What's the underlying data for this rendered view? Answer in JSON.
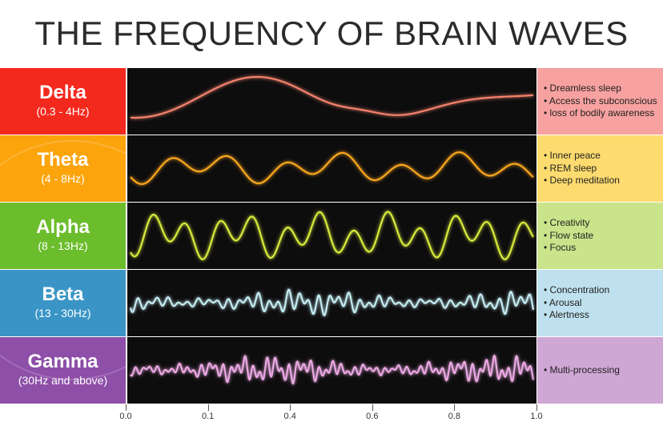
{
  "title": "THE FREQUENCY OF BRAIN WAVES",
  "waves": [
    {
      "name": "Delta",
      "range": "(0.3 - 4Hz)",
      "color": "#f4291e",
      "right_color": "#f7a1a0",
      "wave_color": "#f2826c",
      "effects": [
        "Dreamless sleep",
        "Access the subconscious",
        "loss of bodily awareness"
      ]
    },
    {
      "name": "Theta",
      "range": "(4 - 8Hz)",
      "color": "#fca40c",
      "right_color": "#fedb6e",
      "wave_color": "#f8a61e",
      "effects": [
        "Inner peace",
        "REM sleep",
        "Deep meditation"
      ]
    },
    {
      "name": "Alpha",
      "range": "(8 - 13Hz)",
      "color": "#6bbd2c",
      "right_color": "#c9e48a",
      "wave_color": "#d6ea3c",
      "effects": [
        "Creativity",
        "Flow state",
        "Focus"
      ]
    },
    {
      "name": "Beta",
      "range": "(13 - 30Hz)",
      "color": "#3a95c6",
      "right_color": "#bfe0ee",
      "wave_color": "#c4ecf2",
      "effects": [
        "Concentration",
        "Arousal",
        "Alertness"
      ]
    },
    {
      "name": "Gamma",
      "range": "(30Hz and above)",
      "color": "#8e4fa8",
      "right_color": "#cfa7d4",
      "wave_color": "#eaa8e2",
      "effects": [
        "Multi-processing"
      ]
    }
  ],
  "axis": {
    "ticks": [
      "0.0",
      "0.1",
      "0.4",
      "0.6",
      "0.8",
      "1.0"
    ]
  }
}
